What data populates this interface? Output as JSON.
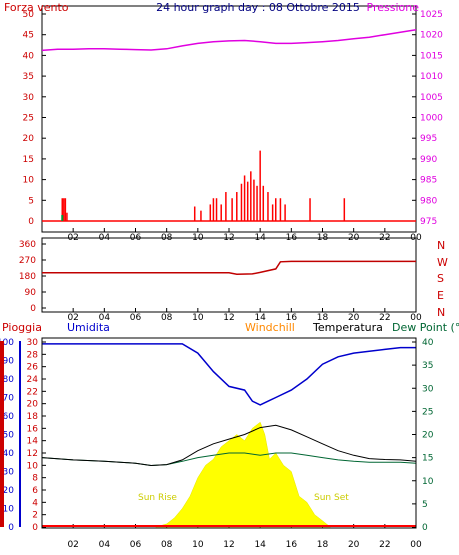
{
  "colors": {
    "background": "#ffffff",
    "frame": "#000000",
    "wind_gust": "#ff0000",
    "wind_avg": "#009933",
    "pressure": "#e000e0",
    "direction": "#c00000",
    "rain": "#ff0000",
    "humidity": "#0000cc",
    "windchill": "#ff8800",
    "temperature": "#000000",
    "dewpoint": "#006633",
    "solar": "#ffff00",
    "sun_label": "#cccc00"
  },
  "panel1": {
    "left_title": "Forza vento",
    "title": "24 hour graph day : 08 Ottobre 2015",
    "right_title": "Pressione"
  },
  "panel2": {
    "right_labels": [
      "N",
      "W",
      "S",
      "E",
      "N"
    ]
  },
  "panel3": {
    "label_rain": "Pioggia",
    "label_humidity": "Umidita",
    "label_windchill": "Windchill",
    "label_temperature": "Temperatura",
    "label_dewpoint": "Dew Point (°C",
    "sun_rise": "Sun Rise",
    "sun_set": "Sun Set"
  },
  "chart_data": [
    {
      "type": "line",
      "x_ticks": [
        "02",
        "04",
        "06",
        "08",
        "10",
        "12",
        "14",
        "16",
        "18",
        "20",
        "22",
        "00"
      ],
      "xlim": [
        0,
        24
      ],
      "y_left_ticks": [
        "0",
        "5",
        "10",
        "15",
        "20",
        "25",
        "30",
        "35",
        "40",
        "45",
        "50"
      ],
      "y_left_lim": [
        0,
        50
      ],
      "y_right_ticks": [
        "975",
        "980",
        "985",
        "990",
        "995",
        "1000",
        "1005",
        "1010",
        "1015",
        "1020",
        "1025"
      ],
      "y_right_lim": [
        975,
        1025
      ],
      "series": [
        {
          "name": "Pressione",
          "axis": "right",
          "x": [
            0,
            1,
            2,
            3,
            4,
            5,
            6,
            7,
            8,
            9,
            10,
            11,
            12,
            13,
            14,
            15,
            16,
            17,
            18,
            19,
            20,
            21,
            22,
            23,
            24
          ],
          "values": [
            1016.2,
            1016.5,
            1016.5,
            1016.6,
            1016.6,
            1016.5,
            1016.4,
            1016.3,
            1016.6,
            1017.3,
            1017.9,
            1018.3,
            1018.5,
            1018.6,
            1018.3,
            1017.9,
            1017.9,
            1018.1,
            1018.3,
            1018.6,
            1019.0,
            1019.4,
            1020.0,
            1020.6,
            1021.2
          ]
        },
        {
          "name": "Forza vento",
          "axis": "left",
          "x": [
            1.3,
            1.4,
            1.5,
            1.6,
            9.8,
            10.2,
            10.8,
            11.0,
            11.2,
            11.5,
            11.8,
            12.2,
            12.5,
            12.8,
            13.0,
            13.2,
            13.4,
            13.6,
            13.8,
            14.0,
            14.2,
            14.5,
            14.8,
            15.0,
            15.3,
            15.6,
            17.2,
            19.4
          ],
          "values": [
            5.5,
            5.5,
            5.5,
            2.0,
            3.5,
            2.5,
            4.0,
            5.5,
            5.5,
            4.0,
            7.0,
            5.5,
            7.0,
            9.0,
            11.0,
            9.5,
            12.0,
            10.0,
            8.5,
            17.0,
            8.5,
            7.0,
            4.0,
            5.5,
            5.5,
            4.0,
            5.5,
            5.5
          ]
        }
      ]
    },
    {
      "type": "line",
      "x_ticks": [
        "02",
        "04",
        "06",
        "08",
        "10",
        "12",
        "14",
        "16",
        "18",
        "20",
        "22",
        "00"
      ],
      "xlim": [
        0,
        24
      ],
      "y_ticks": [
        "0",
        "90",
        "180",
        "270",
        "360"
      ],
      "ylim": [
        0,
        360
      ],
      "series": [
        {
          "x": [
            0,
            6,
            12,
            12.5,
            13.5,
            14,
            15,
            15.3,
            16,
            18,
            20,
            22,
            24
          ],
          "values": [
            198,
            198,
            198,
            190,
            192,
            200,
            220,
            260,
            262,
            262,
            262,
            262,
            262
          ]
        }
      ]
    },
    {
      "type": "line",
      "x_ticks": [
        "02",
        "04",
        "06",
        "08",
        "10",
        "12",
        "14",
        "16",
        "18",
        "20",
        "22",
        "00"
      ],
      "xlim": [
        0,
        24
      ],
      "y_left_outer_ticks": [
        "0",
        "10",
        "20",
        "30",
        "40",
        "50",
        "60",
        "70",
        "80",
        "90",
        "100"
      ],
      "y_left_outer_lim": [
        0,
        100
      ],
      "y_left_inner_ticks": [
        "0",
        "2",
        "4",
        "6",
        "8",
        "10",
        "12",
        "14",
        "16",
        "18",
        "20",
        "22",
        "24",
        "26",
        "28",
        "30"
      ],
      "y_left_inner_lim": [
        0,
        30
      ],
      "y_right_ticks": [
        "0",
        "5",
        "10",
        "15",
        "20",
        "25",
        "30",
        "35",
        "40"
      ],
      "y_right_lim": [
        0,
        40
      ],
      "series": [
        {
          "name": "Umidita",
          "axis": "left_outer",
          "x": [
            0,
            2,
            4,
            6,
            8,
            9,
            10,
            11,
            12,
            13,
            13.5,
            14,
            14.5,
            15,
            16,
            17,
            18,
            19,
            20,
            21,
            22,
            23,
            24
          ],
          "values": [
            99,
            99,
            99,
            99,
            99,
            99,
            94,
            84,
            76,
            74,
            68,
            66,
            68,
            70,
            74,
            80,
            88,
            92,
            94,
            95,
            96,
            97,
            97
          ]
        },
        {
          "name": "Temperatura",
          "axis": "right",
          "x": [
            0,
            2,
            4,
            6,
            7,
            8,
            9,
            10,
            11,
            12,
            13,
            14,
            15,
            16,
            17,
            18,
            19,
            20,
            21,
            22,
            23,
            24
          ],
          "values": [
            15.0,
            14.5,
            14.2,
            13.8,
            13.3,
            13.5,
            14.5,
            16.5,
            18.0,
            19.0,
            20.0,
            21.5,
            22.0,
            21.0,
            19.5,
            18.0,
            16.5,
            15.5,
            14.8,
            14.6,
            14.5,
            14.2
          ]
        },
        {
          "name": "Dew Point",
          "axis": "right",
          "x": [
            0,
            2,
            4,
            6,
            7,
            8,
            9,
            10,
            11,
            12,
            13,
            14,
            15,
            16,
            17,
            18,
            19,
            20,
            21,
            22,
            23,
            24
          ],
          "values": [
            15.0,
            14.5,
            14.2,
            13.8,
            13.3,
            13.5,
            14.2,
            15.0,
            15.5,
            16.0,
            16.0,
            15.5,
            16.0,
            16.0,
            15.5,
            15.0,
            14.5,
            14.2,
            14.0,
            14.0,
            14.0,
            13.8
          ]
        },
        {
          "name": "Solar",
          "axis": "left_inner",
          "x": [
            7.3,
            8,
            8.5,
            9,
            9.5,
            10,
            10.5,
            11,
            11.5,
            12,
            12.5,
            13,
            13.5,
            14,
            14.3,
            14.6,
            15,
            15.5,
            16,
            16.5,
            17,
            17.5,
            18,
            18.5
          ],
          "values": [
            0,
            0.5,
            1.5,
            3,
            5,
            8,
            10,
            11,
            13,
            14,
            15,
            14,
            16,
            17,
            15,
            11,
            12,
            10,
            9,
            5,
            4,
            2,
            1,
            0
          ]
        },
        {
          "name": "Pioggia",
          "axis": "left_outer",
          "x": [
            0,
            24
          ],
          "values": [
            0,
            0
          ]
        }
      ]
    }
  ]
}
